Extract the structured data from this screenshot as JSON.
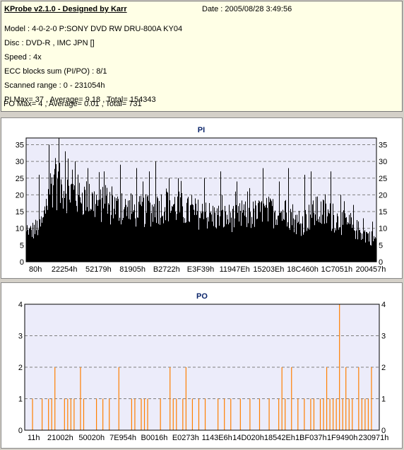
{
  "info": {
    "title": "KProbe v2.1.0 - Designed by Karr",
    "date": "Date : 2005/08/28 3:49:56",
    "lines": [
      "Model : 4-0-2-0 P:SONY     DVD RW DRU-800A  KY04",
      "Disc : DVD-R , IMC JPN []",
      "Speed : 4x",
      "ECC blocks sum (PI/PO) : 8/1",
      "Scanned range : 0 - 231054h",
      "PI Max= 37 , Average= 9.18 , Total= 154343",
      "PO Max= 4 , Average= 0.01 , Total= 731"
    ]
  },
  "colors": {
    "window_bg": "#d4d0c8",
    "info_bg": "#ffffe6",
    "plot_bg": "#ececfa",
    "pi_bars": "#000000",
    "po_bars": "#ff7f00",
    "title_text": "#0a246a",
    "grid": "#808080"
  },
  "chart_data": [
    {
      "type": "bar",
      "title": "PI",
      "ylim": [
        0,
        37
      ],
      "yticks": [
        0,
        5,
        10,
        15,
        20,
        25,
        30,
        35
      ],
      "right_axis_ticks": true,
      "grid": true,
      "xtick_labels": [
        "80h",
        "22254h",
        "52179h",
        "81905h",
        "B2722h",
        "E3F39h",
        "11947Eh",
        "15203Eh",
        "18C460h",
        "1C7051h",
        "200457h"
      ],
      "envelope": [
        [
          0,
          10
        ],
        [
          3,
          12
        ],
        [
          5,
          14
        ],
        [
          7,
          25
        ],
        [
          8,
          29
        ],
        [
          10,
          27
        ],
        [
          13,
          26
        ],
        [
          16,
          24
        ],
        [
          20,
          22
        ],
        [
          25,
          20
        ],
        [
          30,
          19
        ],
        [
          35,
          18
        ],
        [
          40,
          19
        ],
        [
          43,
          21
        ],
        [
          46,
          20
        ],
        [
          50,
          18
        ],
        [
          55,
          17
        ],
        [
          60,
          16
        ],
        [
          65,
          16
        ],
        [
          70,
          17
        ],
        [
          75,
          18
        ],
        [
          78,
          18
        ],
        [
          82,
          17
        ],
        [
          84,
          13
        ],
        [
          87,
          16
        ],
        [
          90,
          18
        ],
        [
          93,
          17
        ],
        [
          96,
          15
        ],
        [
          100,
          13
        ],
        [
          103,
          11
        ],
        [
          106,
          9
        ],
        [
          108,
          8
        ]
      ],
      "peaks": [
        [
          4,
          26
        ],
        [
          7,
          35
        ],
        [
          9,
          31
        ],
        [
          10,
          37
        ],
        [
          12,
          33
        ],
        [
          15,
          30
        ],
        [
          19,
          28
        ],
        [
          24,
          27
        ],
        [
          29,
          29
        ],
        [
          34,
          28
        ],
        [
          36,
          24
        ],
        [
          38,
          27
        ],
        [
          40,
          30
        ],
        [
          44,
          25
        ],
        [
          47,
          25
        ],
        [
          55,
          25
        ],
        [
          60,
          27
        ],
        [
          65,
          24
        ],
        [
          69,
          22
        ],
        [
          73,
          28
        ],
        [
          78,
          24
        ],
        [
          81,
          28
        ],
        [
          86,
          26
        ],
        [
          88,
          27
        ],
        [
          94,
          27
        ],
        [
          97,
          20
        ],
        [
          101,
          17
        ],
        [
          104,
          13
        ],
        [
          107,
          12
        ]
      ]
    },
    {
      "type": "bar",
      "title": "PO",
      "ylim": [
        0,
        4
      ],
      "yticks": [
        0,
        1,
        2,
        3,
        4
      ],
      "right_axis_ticks": true,
      "grid": true,
      "xtick_labels": [
        "11h",
        "21002h",
        "50020h",
        "7E954h",
        "B0016h",
        "E0273h",
        "1143E6h",
        "14D020h",
        "18542Eh",
        "1BF037h",
        "1F9490h",
        "230971h"
      ],
      "spikes": [
        [
          2,
          1
        ],
        [
          5,
          1
        ],
        [
          7,
          1
        ],
        [
          8,
          1
        ],
        [
          9,
          2
        ],
        [
          12,
          1
        ],
        [
          13,
          1
        ],
        [
          14,
          1
        ],
        [
          15,
          1
        ],
        [
          17,
          2
        ],
        [
          18,
          1
        ],
        [
          22,
          1
        ],
        [
          24,
          1
        ],
        [
          26,
          1
        ],
        [
          29,
          2
        ],
        [
          33,
          1
        ],
        [
          34,
          1
        ],
        [
          36,
          1
        ],
        [
          37,
          1
        ],
        [
          38,
          1
        ],
        [
          42,
          1
        ],
        [
          45,
          2
        ],
        [
          46,
          1
        ],
        [
          47,
          1
        ],
        [
          49,
          1
        ],
        [
          50,
          2
        ],
        [
          52,
          1
        ],
        [
          54,
          1
        ],
        [
          56,
          1
        ],
        [
          60,
          1
        ],
        [
          62,
          1
        ],
        [
          64,
          1
        ],
        [
          67,
          1
        ],
        [
          70,
          1
        ],
        [
          73,
          1
        ],
        [
          76,
          1
        ],
        [
          79,
          1
        ],
        [
          80,
          2
        ],
        [
          81,
          1
        ],
        [
          83,
          2
        ],
        [
          85,
          1
        ],
        [
          87,
          1
        ],
        [
          89,
          1
        ],
        [
          90,
          1
        ],
        [
          92,
          1
        ],
        [
          93,
          1
        ],
        [
          94,
          2
        ],
        [
          95,
          1
        ],
        [
          96,
          1
        ],
        [
          97,
          1
        ],
        [
          98,
          4
        ],
        [
          99,
          1
        ],
        [
          100,
          2
        ],
        [
          101,
          1
        ],
        [
          102,
          1
        ],
        [
          104,
          2
        ],
        [
          105,
          1
        ],
        [
          106,
          1
        ],
        [
          107,
          1
        ],
        [
          108,
          2
        ]
      ]
    }
  ]
}
